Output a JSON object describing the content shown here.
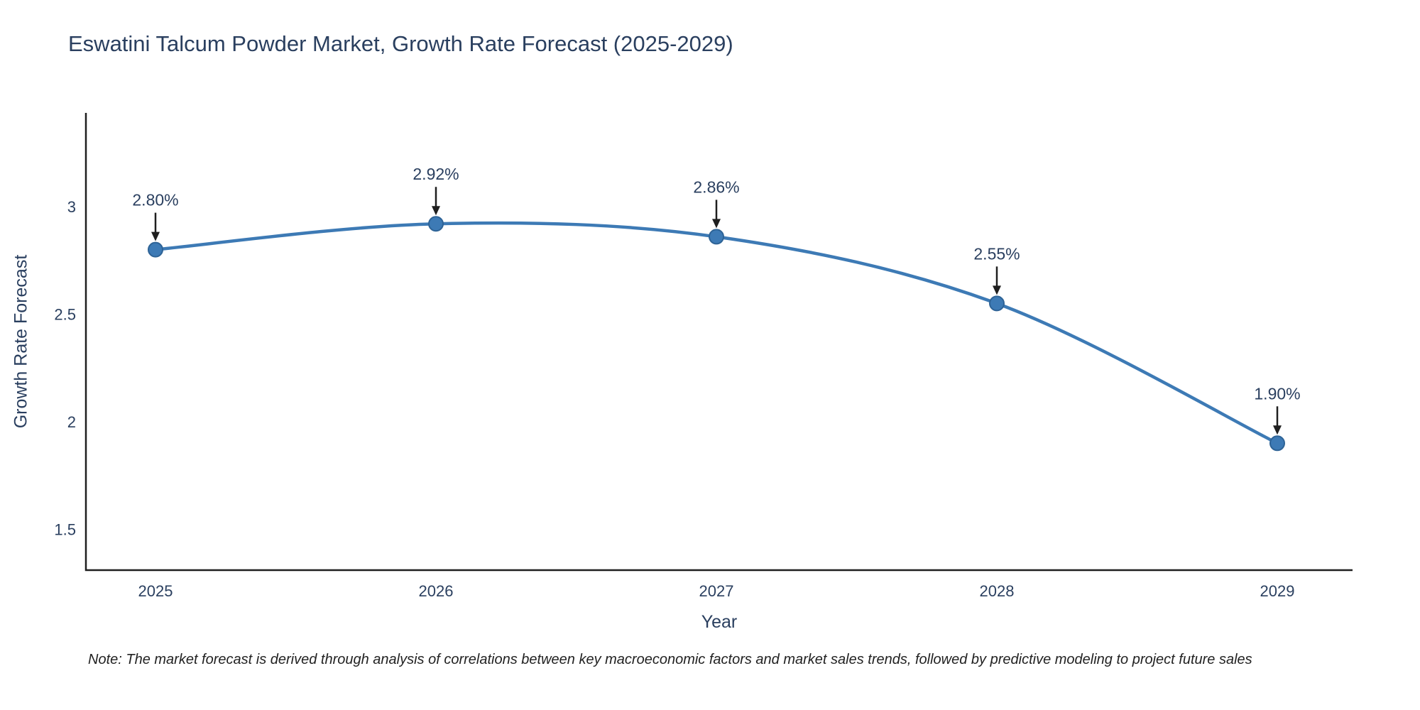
{
  "chart_data": {
    "type": "line",
    "title": "Eswatini Talcum Powder Market, Growth Rate Forecast (2025-2029)",
    "xlabel": "Year",
    "ylabel": "Growth Rate Forecast",
    "x": [
      "2025",
      "2026",
      "2027",
      "2028",
      "2029"
    ],
    "series": [
      {
        "name": "Growth Rate Forecast",
        "values": [
          2.8,
          2.92,
          2.86,
          2.55,
          1.9
        ]
      }
    ],
    "point_labels": [
      "2.80%",
      "2.92%",
      "2.86%",
      "2.55%",
      "1.90%"
    ],
    "yticks": [
      "1.5",
      "2",
      "2.5",
      "3"
    ],
    "ytick_values": [
      1.5,
      2,
      2.5,
      3
    ],
    "ylim": [
      1.31,
      3.44
    ],
    "grid": "off",
    "legend": "none",
    "line_color": "#3d7ab5",
    "marker_color": "#3d7ab5",
    "marker_edge_color": "#2e6396",
    "axis_color": "#1f1f1f",
    "text_color": "#2a3f5f",
    "annotation_color": "#2a3f5f",
    "note": "Note: The market forecast is derived through analysis of correlations between key macroeconomic factors and market sales trends, followed by predictive modeling to project future sales"
  }
}
